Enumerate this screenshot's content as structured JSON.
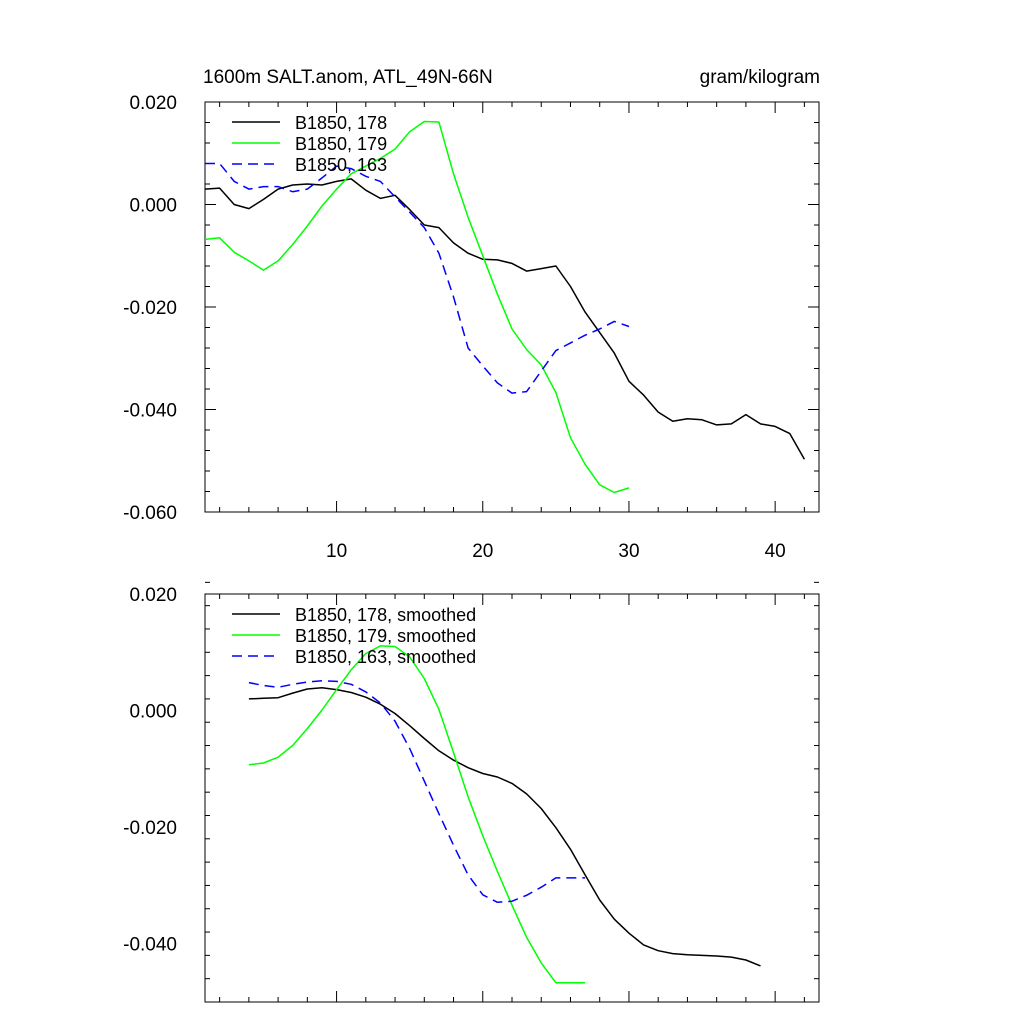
{
  "chart_data": [
    {
      "type": "line",
      "title_left": "1600m SALT.anom, ATL_49N-66N",
      "title_right": "gram/kilogram",
      "xlabel": "",
      "ylabel": "",
      "xlim": [
        1,
        43
      ],
      "ylim": [
        -0.06,
        0.02
      ],
      "xticks": [
        10,
        20,
        30,
        40
      ],
      "xtick_labels": [
        "10",
        "20",
        "30",
        "40"
      ],
      "yticks": [
        0.02,
        0.0,
        -0.02,
        -0.04,
        -0.06
      ],
      "ytick_labels": [
        "0.020",
        "0.000",
        "-0.020",
        "-0.040",
        "-0.060"
      ],
      "legend_position": "top-left",
      "series": [
        {
          "name": "B1850, 178",
          "color": "#000000",
          "dash": "solid",
          "x": [
            1,
            2,
            3,
            4,
            5,
            6,
            7,
            8,
            9,
            10,
            11,
            12,
            13,
            14,
            15,
            16,
            17,
            18,
            19,
            20,
            21,
            22,
            23,
            24,
            25,
            26,
            27,
            28,
            29,
            30,
            31,
            32,
            33,
            34,
            35,
            36,
            37,
            38,
            39,
            40,
            41,
            42
          ],
          "values": [
            0.003,
            0.0032,
            0.0,
            -0.0008,
            0.001,
            0.003,
            0.0038,
            0.004,
            0.0038,
            0.0045,
            0.005,
            0.0028,
            0.0012,
            0.0018,
            -0.001,
            -0.004,
            -0.0045,
            -0.0075,
            -0.0095,
            -0.0107,
            -0.0108,
            -0.0115,
            -0.013,
            -0.0125,
            -0.012,
            -0.016,
            -0.021,
            -0.025,
            -0.029,
            -0.0345,
            -0.0372,
            -0.0405,
            -0.0423,
            -0.0418,
            -0.042,
            -0.043,
            -0.0428,
            -0.041,
            -0.0428,
            -0.0433,
            -0.0447,
            -0.0497
          ]
        },
        {
          "name": "B1850, 179",
          "color": "#00ff00",
          "dash": "solid",
          "x": [
            1,
            2,
            3,
            4,
            5,
            6,
            7,
            8,
            9,
            10,
            11,
            12,
            13,
            14,
            15,
            16,
            17,
            18,
            19,
            20,
            21,
            22,
            23,
            24,
            25,
            26,
            27,
            28,
            29,
            30
          ],
          "values": [
            -0.0068,
            -0.0065,
            -0.0093,
            -0.011,
            -0.0128,
            -0.011,
            -0.0078,
            -0.0042,
            -0.0003,
            0.003,
            0.006,
            0.0075,
            0.009,
            0.0108,
            0.0142,
            0.0162,
            0.0161,
            0.006,
            -0.0025,
            -0.01,
            -0.0175,
            -0.0243,
            -0.0283,
            -0.0313,
            -0.0367,
            -0.0455,
            -0.0507,
            -0.0547,
            -0.0562,
            -0.0553
          ]
        },
        {
          "name": "B1850, 163",
          "color": "#0000ff",
          "dash": "dashed",
          "x": [
            1,
            2,
            3,
            4,
            5,
            6,
            7,
            8,
            9,
            10,
            11,
            12,
            13,
            14,
            15,
            16,
            17,
            18,
            19,
            20,
            21,
            22,
            23,
            24,
            25,
            26,
            27,
            28,
            29,
            30
          ],
          "values": [
            0.008,
            0.008,
            0.0045,
            0.003,
            0.0035,
            0.0035,
            0.0025,
            0.003,
            0.0052,
            0.0075,
            0.007,
            0.0055,
            0.0045,
            0.0015,
            -0.0015,
            -0.0045,
            -0.0095,
            -0.018,
            -0.028,
            -0.0315,
            -0.0348,
            -0.0368,
            -0.0365,
            -0.0325,
            -0.0285,
            -0.027,
            -0.0255,
            -0.0243,
            -0.0228,
            -0.0238
          ]
        }
      ]
    },
    {
      "type": "line",
      "xlabel": "",
      "ylabel": "",
      "xlim": [
        1,
        43
      ],
      "ylim": [
        -0.05,
        0.02
      ],
      "xticks": [
        10,
        20,
        30,
        40
      ],
      "yticks": [
        0.02,
        0.0,
        -0.02,
        -0.04
      ],
      "ytick_labels": [
        "0.020",
        "0.000",
        "-0.020",
        "-0.040"
      ],
      "legend_position": "top-left",
      "series": [
        {
          "name": "B1850, 178, smoothed",
          "color": "#000000",
          "dash": "solid",
          "x": [
            4,
            5,
            6,
            7,
            8,
            9,
            10,
            11,
            12,
            13,
            14,
            15,
            16,
            17,
            18,
            19,
            20,
            21,
            22,
            23,
            24,
            25,
            26,
            27,
            28,
            29,
            30,
            31,
            32,
            33,
            34,
            35,
            36,
            37,
            38,
            39
          ],
          "values": [
            0.002,
            0.0021,
            0.0022,
            0.003,
            0.0037,
            0.0039,
            0.0036,
            0.0031,
            0.0023,
            0.0011,
            -0.0005,
            -0.0026,
            -0.0048,
            -0.0069,
            -0.0085,
            -0.0098,
            -0.0108,
            -0.0114,
            -0.0125,
            -0.0143,
            -0.0168,
            -0.0201,
            -0.0238,
            -0.0282,
            -0.0325,
            -0.0358,
            -0.0382,
            -0.0402,
            -0.0412,
            -0.0417,
            -0.0419,
            -0.042,
            -0.0421,
            -0.0423,
            -0.0428,
            -0.0438
          ]
        },
        {
          "name": "B1850, 179, smoothed",
          "color": "#00ff00",
          "dash": "solid",
          "x": [
            4,
            5,
            6,
            7,
            8,
            9,
            10,
            11,
            12,
            13,
            14,
            15,
            16,
            17,
            18,
            19,
            20,
            21,
            22,
            23,
            24,
            25,
            26,
            27
          ],
          "values": [
            -0.0093,
            -0.009,
            -0.008,
            -0.006,
            -0.0031,
            0.0001,
            0.0036,
            0.007,
            0.0098,
            0.0111,
            0.011,
            0.0092,
            0.0055,
            0.0002,
            -0.0072,
            -0.0148,
            -0.0215,
            -0.0276,
            -0.0334,
            -0.0389,
            -0.0433,
            -0.0467,
            -0.0467,
            -0.0467
          ]
        },
        {
          "name": "B1850, 163, smoothed",
          "color": "#0000ff",
          "dash": "dashed",
          "x": [
            4,
            5,
            6,
            7,
            8,
            9,
            10,
            11,
            12,
            13,
            14,
            15,
            16,
            17,
            18,
            19,
            20,
            21,
            22,
            23,
            24,
            25,
            26,
            27
          ],
          "values": [
            0.0048,
            0.0043,
            0.004,
            0.0045,
            0.0049,
            0.0051,
            0.005,
            0.0045,
            0.0032,
            0.0013,
            -0.0018,
            -0.0065,
            -0.0121,
            -0.0177,
            -0.0231,
            -0.0282,
            -0.0316,
            -0.0329,
            -0.0327,
            -0.0317,
            -0.0303,
            -0.0287,
            -0.0287,
            -0.0287
          ]
        }
      ]
    }
  ]
}
